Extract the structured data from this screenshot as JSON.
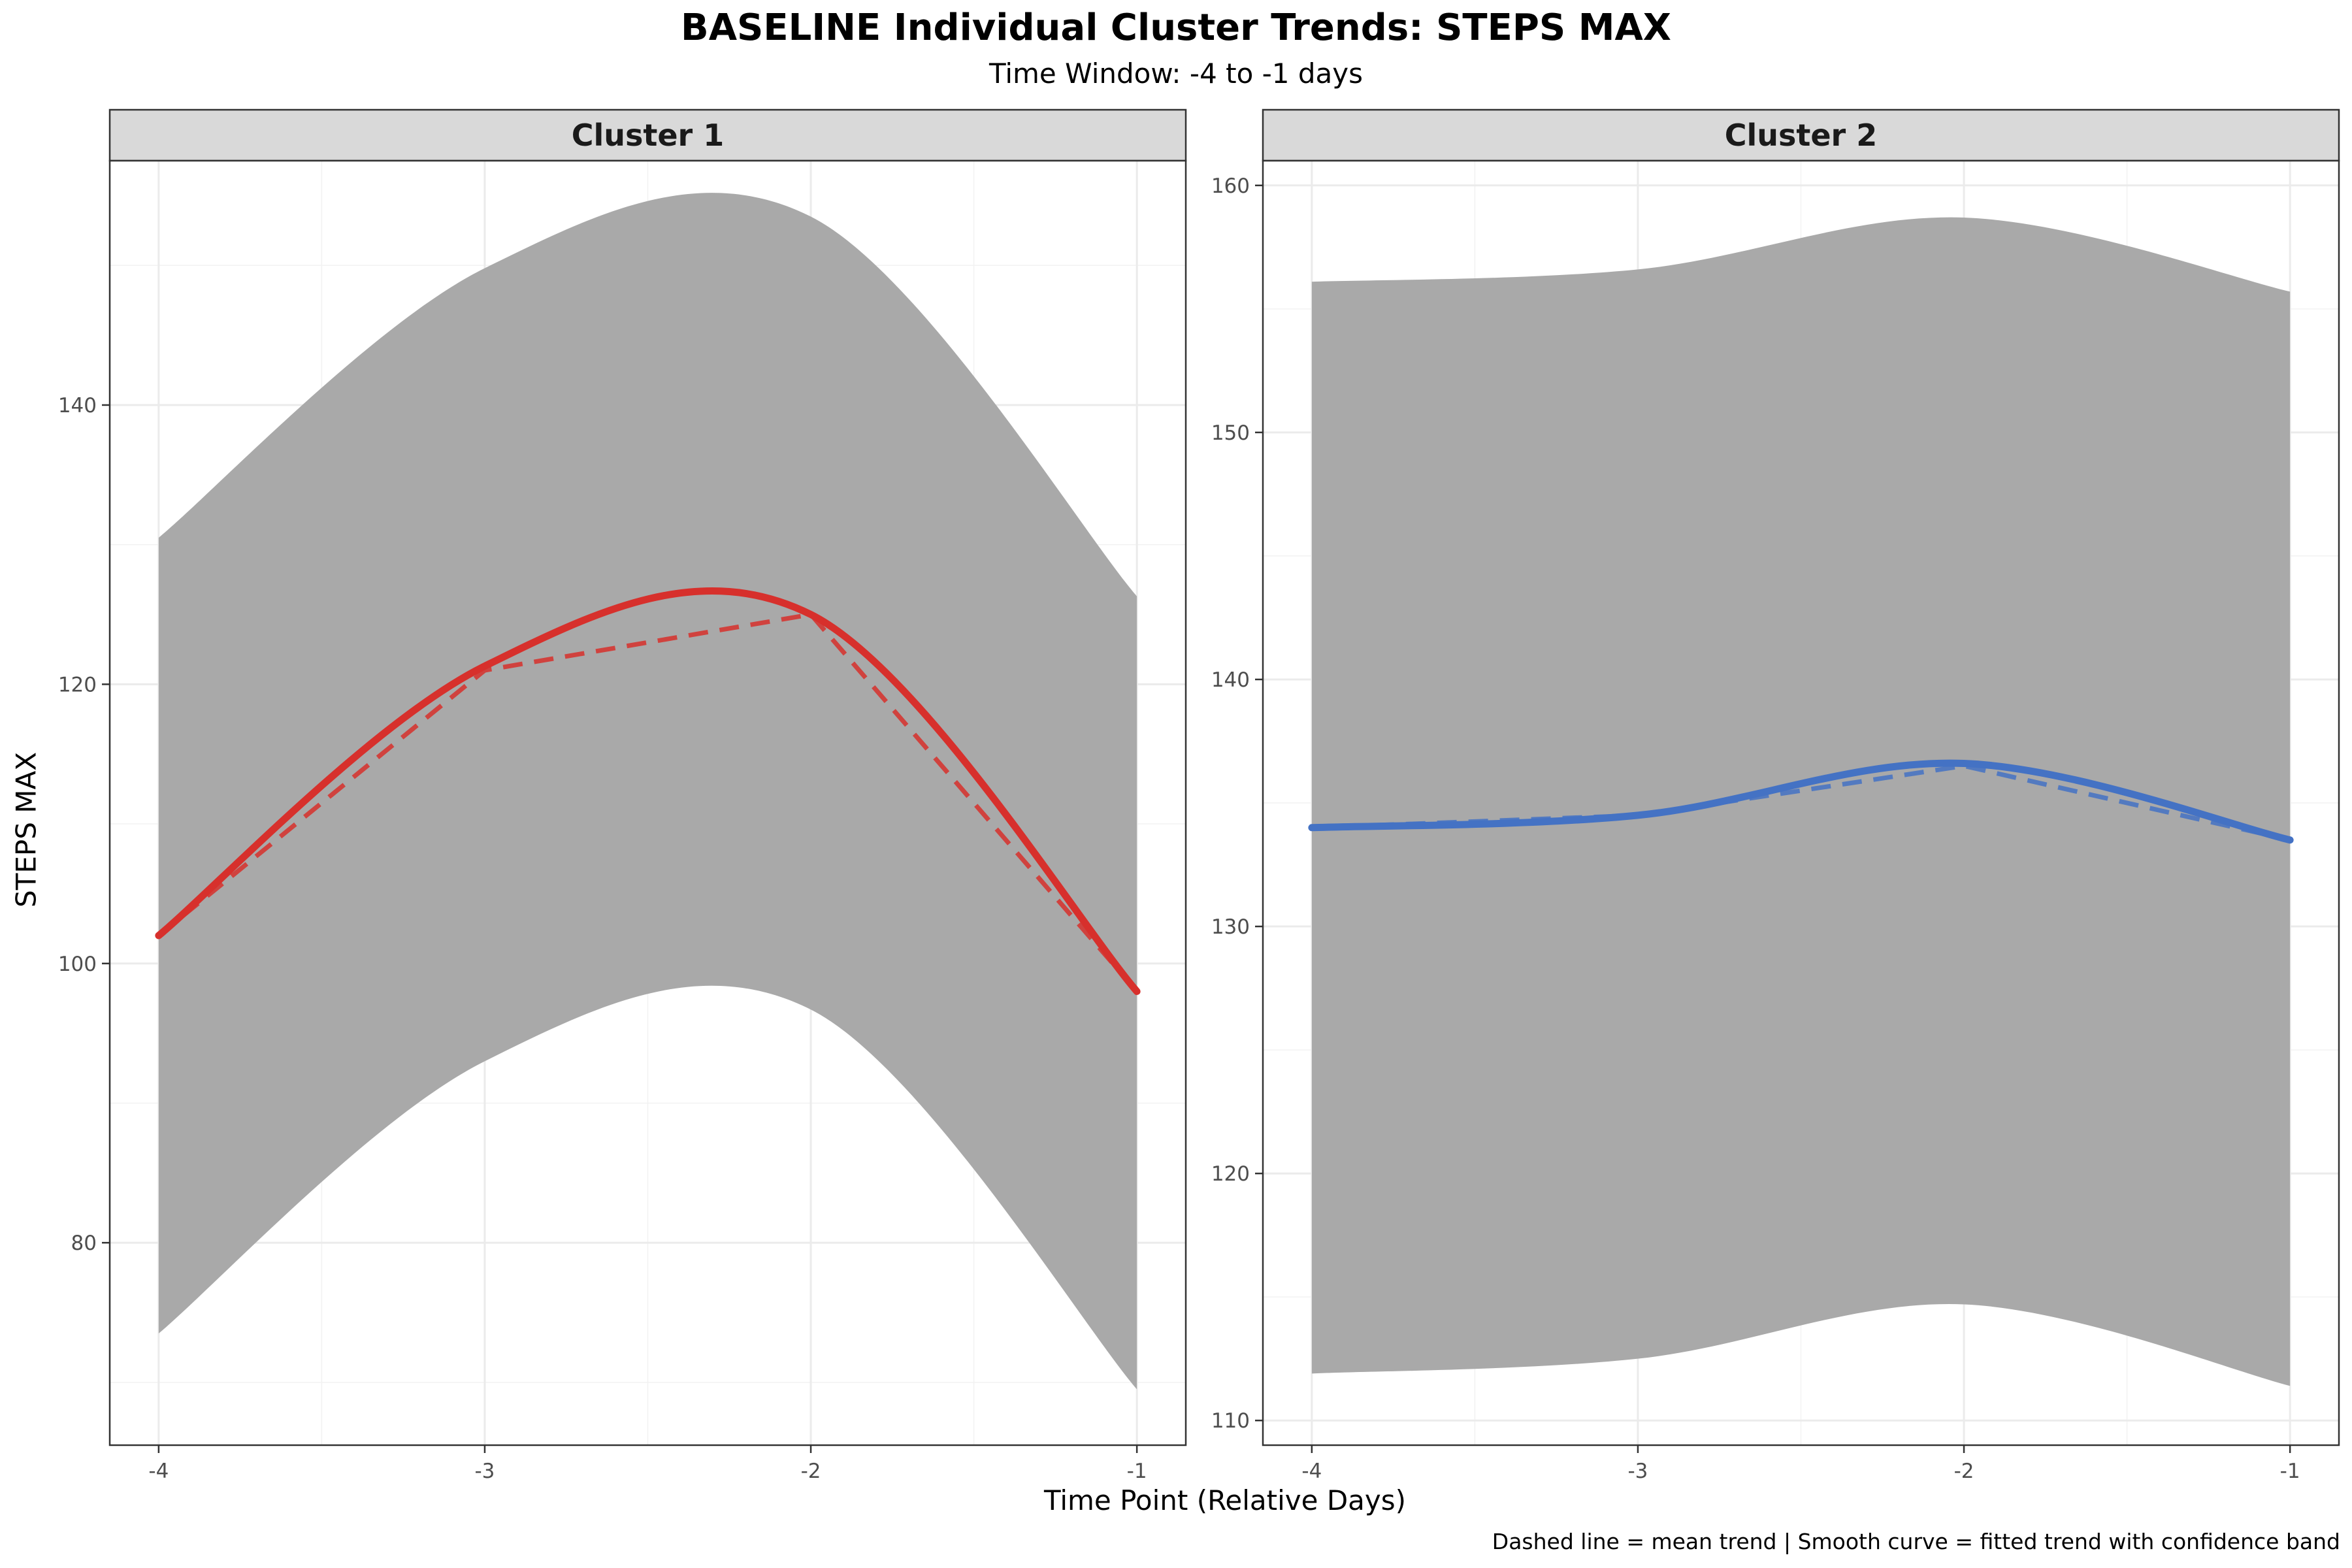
{
  "title": "BASELINE Individual Cluster Trends: STEPS MAX",
  "subtitle": "Time Window: -4 to -1 days",
  "xlabel": "Time Point (Relative Days)",
  "ylabel": "STEPS MAX",
  "caption": "Dashed line = mean trend | Smooth curve = fitted trend with confidence band",
  "colors": {
    "cluster1": "#d7302c",
    "cluster2": "#4472c4",
    "band": "#a9a9a9"
  },
  "chart_data": [
    {
      "type": "line",
      "panel": "Cluster 1",
      "x": [
        -4,
        -3,
        -2,
        -1
      ],
      "x_ticks": [
        "-4",
        "-3",
        "-2",
        "-1"
      ],
      "y_ticks": [
        "80",
        "100",
        "120",
        "140"
      ],
      "xlim": [
        -4.15,
        -0.85
      ],
      "ylim": [
        65.5,
        157.5
      ],
      "mean_trend": [
        102,
        121,
        125,
        98
      ],
      "fitted_trend": [
        102,
        121.3,
        125,
        98
      ],
      "band_upper": [
        130.5,
        149.8,
        153.5,
        126.3
      ],
      "band_lower": [
        73.5,
        93,
        96.7,
        69.5
      ],
      "color": "#d7302c"
    },
    {
      "type": "line",
      "panel": "Cluster 2",
      "x": [
        -4,
        -3,
        -2,
        -1
      ],
      "x_ticks": [
        "-4",
        "-3",
        "-2",
        "-1"
      ],
      "y_ticks": [
        "110",
        "120",
        "130",
        "140",
        "150",
        "160"
      ],
      "xlim": [
        -4.15,
        -0.85
      ],
      "ylim": [
        109,
        161
      ],
      "mean_trend": [
        134,
        134.5,
        136.5,
        133.5
      ],
      "fitted_trend": [
        134,
        134.5,
        136.6,
        133.5
      ],
      "band_upper": [
        156.1,
        156.6,
        158.7,
        155.7
      ],
      "band_lower": [
        111.9,
        112.5,
        114.7,
        111.4
      ],
      "color": "#4472c4"
    }
  ]
}
